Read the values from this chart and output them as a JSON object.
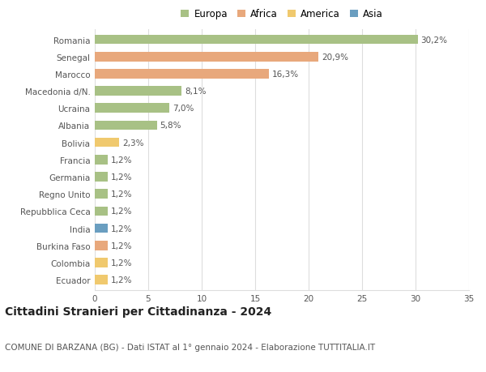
{
  "countries": [
    "Romania",
    "Senegal",
    "Marocco",
    "Macedonia d/N.",
    "Ucraina",
    "Albania",
    "Bolivia",
    "Francia",
    "Germania",
    "Regno Unito",
    "Repubblica Ceca",
    "India",
    "Burkina Faso",
    "Colombia",
    "Ecuador"
  ],
  "values": [
    30.2,
    20.9,
    16.3,
    8.1,
    7.0,
    5.8,
    2.3,
    1.2,
    1.2,
    1.2,
    1.2,
    1.2,
    1.2,
    1.2,
    1.2
  ],
  "labels": [
    "30,2%",
    "20,9%",
    "16,3%",
    "8,1%",
    "7,0%",
    "5,8%",
    "2,3%",
    "1,2%",
    "1,2%",
    "1,2%",
    "1,2%",
    "1,2%",
    "1,2%",
    "1,2%",
    "1,2%"
  ],
  "continents": [
    "Europa",
    "Africa",
    "Africa",
    "Europa",
    "Europa",
    "Europa",
    "America",
    "Europa",
    "Europa",
    "Europa",
    "Europa",
    "Asia",
    "Africa",
    "America",
    "America"
  ],
  "continent_colors": {
    "Europa": "#a8c185",
    "Africa": "#e8a87c",
    "America": "#f0c96e",
    "Asia": "#6a9ec0"
  },
  "legend_order": [
    "Europa",
    "Africa",
    "America",
    "Asia"
  ],
  "title": "Cittadini Stranieri per Cittadinanza - 2024",
  "subtitle": "COMUNE DI BARZANA (BG) - Dati ISTAT al 1° gennaio 2024 - Elaborazione TUTTITALIA.IT",
  "xlim": [
    0,
    35
  ],
  "xticks": [
    0,
    5,
    10,
    15,
    20,
    25,
    30,
    35
  ],
  "background_color": "#ffffff",
  "grid_color": "#dddddd",
  "bar_height": 0.55,
  "title_fontsize": 10,
  "subtitle_fontsize": 7.5,
  "label_fontsize": 7.5,
  "tick_fontsize": 7.5,
  "legend_fontsize": 8.5
}
